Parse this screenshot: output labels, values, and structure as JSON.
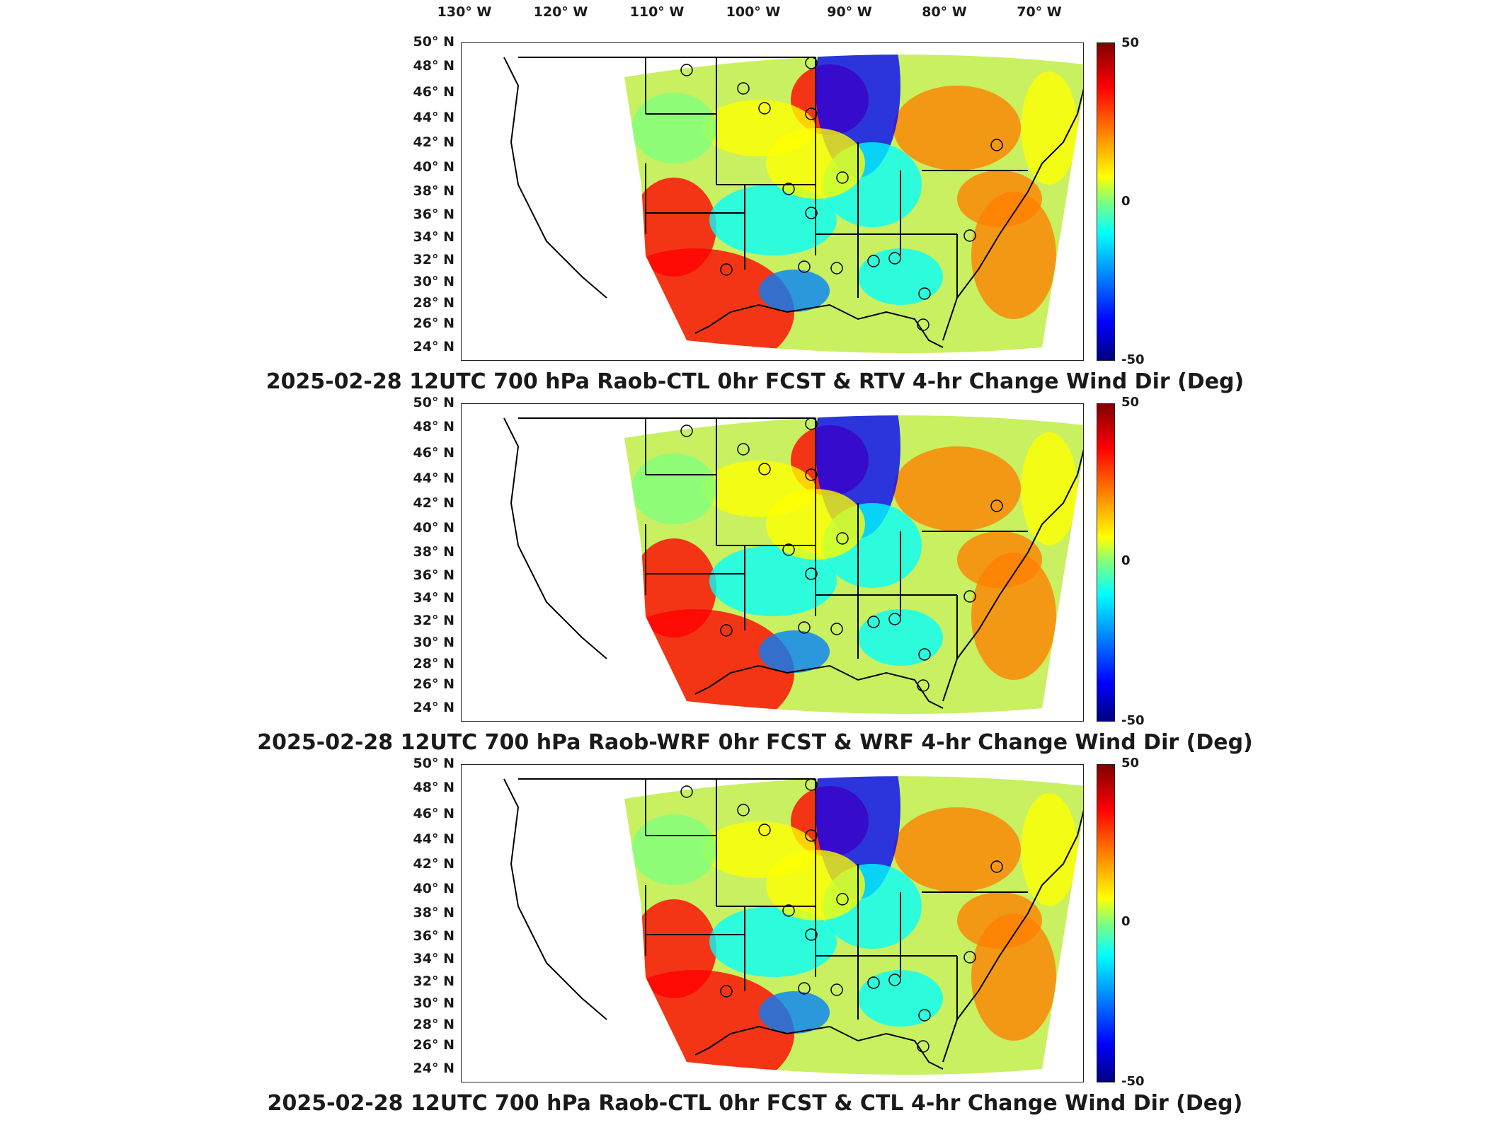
{
  "lon_axis": [
    "130° W",
    "120° W",
    "110° W",
    "100° W",
    "90° W",
    "80° W",
    "70° W"
  ],
  "lat_axis": [
    "50° N",
    "48° N",
    "46° N",
    "44° N",
    "42° N",
    "40° N",
    "38° N",
    "36° N",
    "34° N",
    "32° N",
    "30° N",
    "28° N",
    "26° N",
    "24° N"
  ],
  "colorbar": {
    "max": "50",
    "mid": "0",
    "min": "-50",
    "colors": [
      "#7f0000",
      "#ff0000",
      "#ff7f00",
      "#ffff00",
      "#7fff7f",
      "#00ffff",
      "#007fff",
      "#0000ff",
      "#00007f"
    ]
  },
  "panels": [
    {
      "caption": "2025-02-28 12UTC 700 hPa Raob-CTL 0hr FCST & RTV 4-hr Change Wind Dir (Deg)"
    },
    {
      "caption": "2025-02-28 12UTC 700 hPa Raob-WRF 0hr FCST & WRF 4-hr Change Wind Dir (Deg)"
    },
    {
      "caption": "2025-02-28 12UTC 700 hPa Raob-CTL 0hr FCST & CTL 4-hr Change Wind Dir (Deg)"
    }
  ]
}
